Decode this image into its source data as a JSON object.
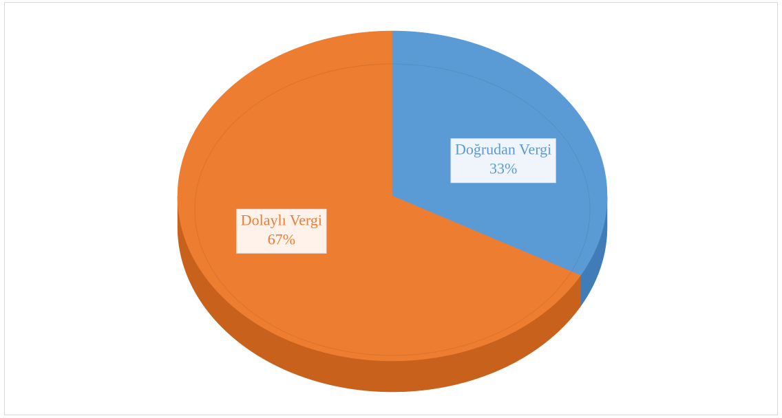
{
  "chart_data": {
    "type": "pie",
    "categories": [
      "Doğrudan Vergi",
      "Dolaylı Vergi"
    ],
    "values": [
      33,
      67
    ],
    "value_labels": [
      "33%",
      "67%"
    ],
    "colors": [
      "#5b9bd5",
      "#ed7d31"
    ],
    "side_colors": [
      "#3f7cb8",
      "#c8611c"
    ],
    "label_colors": [
      "#5b9bd5",
      "#ed7d31"
    ]
  }
}
